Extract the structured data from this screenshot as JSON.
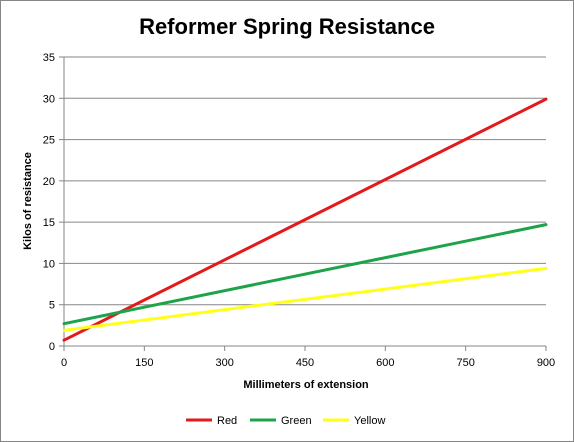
{
  "chart_data": {
    "type": "line",
    "title": "Reformer Spring Resistance",
    "xlabel": "Millimeters of extension",
    "ylabel": "Kilos of resistance",
    "xlim": [
      0,
      900
    ],
    "ylim": [
      0,
      35
    ],
    "x_ticks": [
      0,
      150,
      300,
      450,
      600,
      750,
      900
    ],
    "y_ticks": [
      0,
      5,
      10,
      15,
      20,
      25,
      30,
      35
    ],
    "grid": "horizontal",
    "legend_position": "bottom",
    "series": [
      {
        "name": "Red",
        "color": "#e31a1c",
        "x": [
          0,
          900
        ],
        "y": [
          0.7,
          29.9
        ]
      },
      {
        "name": "Green",
        "color": "#1fa34a",
        "x": [
          0,
          900
        ],
        "y": [
          2.7,
          14.7
        ]
      },
      {
        "name": "Yellow",
        "color": "#ffff1a",
        "x": [
          0,
          900
        ],
        "y": [
          1.9,
          9.4
        ]
      }
    ]
  }
}
